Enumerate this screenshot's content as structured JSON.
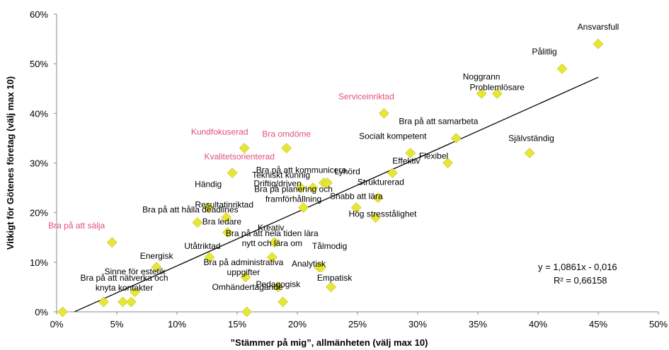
{
  "chart_data": {
    "type": "scatter",
    "xlabel": "”Stämmer på mig”, allmänheten (välj max 10)",
    "ylabel": "Vitkigt för Götenes företag (välj max 10)",
    "xlim": [
      0,
      50
    ],
    "ylim": [
      0,
      60
    ],
    "x_ticks": [
      "0%",
      "5%",
      "10%",
      "15%",
      "20%",
      "25%",
      "30%",
      "35%",
      "40%",
      "45%",
      "50%"
    ],
    "y_ticks": [
      "0%",
      "10%",
      "20%",
      "30%",
      "40%",
      "50%",
      "60%"
    ],
    "grid": false,
    "marker_color": "#e6e639",
    "highlight_color": "#e0507a",
    "trendline": {
      "slope": 1.0861,
      "intercept": -0.016,
      "equation": "y = 1,0861x - 0,016",
      "r_squared": "R² = 0,66158"
    },
    "points": [
      {
        "label": "Ansvarsfull",
        "x": 45.0,
        "y": 54,
        "highlight": false
      },
      {
        "label": "Pålitlig",
        "x": 42.0,
        "y": 49,
        "highlight": false
      },
      {
        "label": "Noggrann",
        "x": 35.3,
        "y": 44,
        "highlight": false
      },
      {
        "label": "Problemlösare",
        "x": 36.6,
        "y": 44,
        "highlight": false
      },
      {
        "label": "Serviceinriktad",
        "x": 27.2,
        "y": 40,
        "highlight": true
      },
      {
        "label": "Bra på att samarbeta",
        "x": 33.2,
        "y": 35,
        "highlight": false
      },
      {
        "label": "Socialt kompetent",
        "x": 29.4,
        "y": 32,
        "highlight": false
      },
      {
        "label": "Flexibel",
        "x": 32.5,
        "y": 30,
        "highlight": false
      },
      {
        "label": "Självständig",
        "x": 39.3,
        "y": 32,
        "highlight": false
      },
      {
        "label": "Kundfokuserad",
        "x": 15.6,
        "y": 33,
        "highlight": true
      },
      {
        "label": "Bra omdöme",
        "x": 19.1,
        "y": 33,
        "highlight": true
      },
      {
        "label": "Kvalitetsorienterad",
        "x": 14.6,
        "y": 28,
        "highlight": true
      },
      {
        "label": "Bra på att kommunicera",
        "x": 22.2,
        "y": 26,
        "highlight": false
      },
      {
        "label": "Tekniskt kunnig",
        "x": 20.3,
        "y": 25,
        "highlight": false
      },
      {
        "label": "Driftig/driven",
        "x": 21.3,
        "y": 25,
        "highlight": false
      },
      {
        "label": "Lyhörd",
        "x": 22.5,
        "y": 26,
        "highlight": false
      },
      {
        "label": "Effektiv",
        "x": 27.9,
        "y": 28,
        "highlight": false
      },
      {
        "label": "Bra på planering och framförhållning",
        "x": 20.5,
        "y": 21,
        "highlight": false
      },
      {
        "label": "Strukturerad",
        "x": 26.7,
        "y": 23,
        "highlight": false
      },
      {
        "label": "Snabb att lära",
        "x": 24.9,
        "y": 21,
        "highlight": false
      },
      {
        "label": "Hög stresstålighet",
        "x": 26.5,
        "y": 19,
        "highlight": false
      },
      {
        "label": "Händig",
        "x": 12.6,
        "y": 21,
        "highlight": false
      },
      {
        "label": "Resultatinriktad",
        "x": 14.1,
        "y": 19,
        "highlight": false
      },
      {
        "label": "Bra på att hålla deadlines",
        "x": 11.7,
        "y": 18,
        "highlight": false
      },
      {
        "label": "Bra ledare",
        "x": 14.2,
        "y": 16,
        "highlight": false
      },
      {
        "label": "Bra på att sälja",
        "x": 4.6,
        "y": 14,
        "highlight": true
      },
      {
        "label": "Kreativ",
        "x": 18.1,
        "y": 14,
        "highlight": false
      },
      {
        "label": "Bra på att hela tiden lära nytt och lära om",
        "x": 17.9,
        "y": 11,
        "highlight": false
      },
      {
        "label": "Energisk",
        "x": 8.3,
        "y": 9,
        "highlight": false
      },
      {
        "label": "Utåtriktad",
        "x": 12.7,
        "y": 11,
        "highlight": false
      },
      {
        "label": "Bra på administrativa uppgifter",
        "x": 15.7,
        "y": 7,
        "highlight": false
      },
      {
        "label": "Tålmodig",
        "x": 21.8,
        "y": 9,
        "highlight": false
      },
      {
        "label": "Analytisk",
        "x": 22.0,
        "y": 9,
        "highlight": false
      },
      {
        "label": "Empatisk",
        "x": 22.8,
        "y": 5,
        "highlight": false
      },
      {
        "label": "Pedagogisk",
        "x": 18.4,
        "y": 5,
        "highlight": false
      },
      {
        "label": "Sinne för estetik",
        "x": 6.5,
        "y": 4,
        "highlight": false
      },
      {
        "label": "Bra på att nätverka och knyta kontakter",
        "x": 5.5,
        "y": 2,
        "highlight": false
      },
      {
        "label": "Omhändertagande",
        "x": 18.8,
        "y": 2,
        "highlight": false
      },
      {
        "label": "",
        "x": 0.5,
        "y": 0,
        "highlight": false
      },
      {
        "label": "",
        "x": 3.9,
        "y": 2,
        "highlight": false
      },
      {
        "label": "",
        "x": 6.2,
        "y": 2,
        "highlight": false
      },
      {
        "label": "",
        "x": 15.8,
        "y": 0,
        "highlight": false
      }
    ]
  }
}
